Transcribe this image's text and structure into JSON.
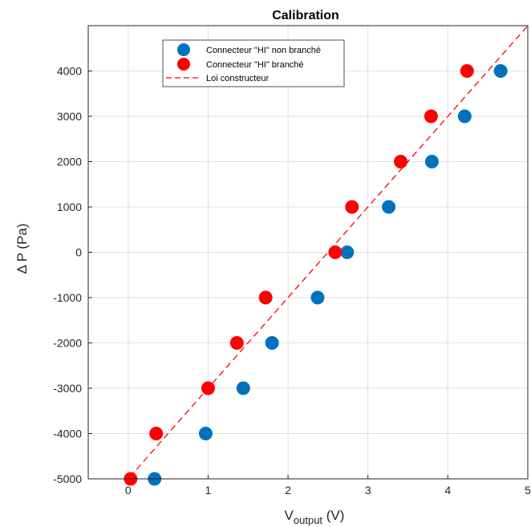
{
  "chart_data": {
    "type": "scatter",
    "title": "Calibration",
    "xlabel": {
      "main": "V",
      "sub": "output",
      "unit": " (V)"
    },
    "ylabel": "Δ P (Pa)",
    "xlim": [
      -0.5,
      5
    ],
    "ylim": [
      -5000,
      5000
    ],
    "xticks": [
      0,
      1,
      2,
      3,
      4,
      5
    ],
    "yticks": [
      -5000,
      -4000,
      -3000,
      -2000,
      -1000,
      0,
      1000,
      2000,
      3000,
      4000
    ],
    "grid": true,
    "legend_position": "top-left",
    "series": [
      {
        "name": "Connecteur \"HI\" non branché",
        "kind": "scatter",
        "color": "#0072BD",
        "points": [
          [
            0.33,
            -5000
          ],
          [
            0.97,
            -4000
          ],
          [
            1.44,
            -3000
          ],
          [
            1.8,
            -2000
          ],
          [
            2.37,
            -1000
          ],
          [
            2.74,
            0
          ],
          [
            3.26,
            1000
          ],
          [
            3.8,
            2000
          ],
          [
            4.21,
            3000
          ],
          [
            4.66,
            4000
          ]
        ]
      },
      {
        "name": "Connecteur \"HI\" branché",
        "kind": "scatter",
        "color": "#FF0000",
        "points": [
          [
            0.03,
            -5000
          ],
          [
            0.35,
            -4000
          ],
          [
            1.0,
            -3000
          ],
          [
            1.36,
            -2000
          ],
          [
            1.72,
            -1000
          ],
          [
            2.59,
            0
          ],
          [
            2.8,
            1000
          ],
          [
            3.41,
            2000
          ],
          [
            3.79,
            3000
          ],
          [
            4.24,
            4000
          ]
        ]
      },
      {
        "name": "Loi constructeur",
        "kind": "line",
        "style": "dashed",
        "color": "#FF0000",
        "points": [
          [
            0,
            -5000
          ],
          [
            5,
            5000
          ]
        ]
      }
    ]
  }
}
